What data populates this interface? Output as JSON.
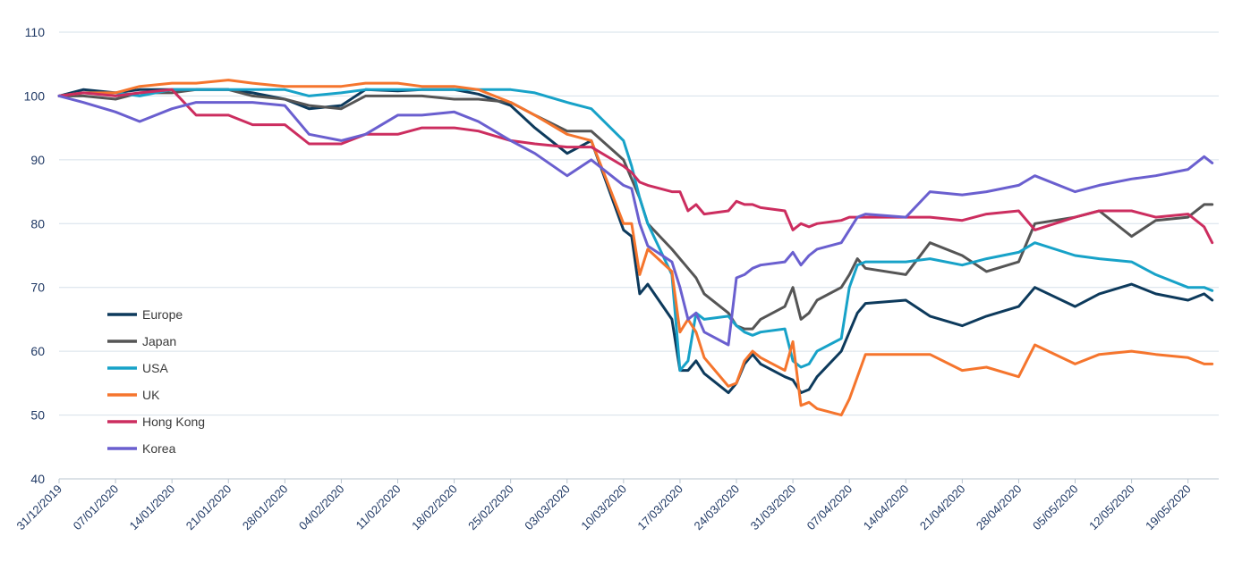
{
  "chart_data": {
    "type": "line",
    "title": "",
    "xlabel": "",
    "ylabel": "",
    "ylim": [
      40,
      110
    ],
    "yticks": [
      40,
      50,
      60,
      70,
      80,
      90,
      100,
      110
    ],
    "x_tick_labels": [
      "31/12/2019",
      "07/01/2020",
      "14/01/2020",
      "21/01/2020",
      "28/01/2020",
      "04/02/2020",
      "11/02/2020",
      "18/02/2020",
      "25/02/2020",
      "03/03/2020",
      "10/03/2020",
      "17/03/2020",
      "24/03/2020",
      "31/03/2020",
      "07/04/2020",
      "14/04/2020",
      "21/04/2020",
      "28/04/2020",
      "05/05/2020",
      "12/05/2020",
      "19/05/2020"
    ],
    "grid": "horizontal",
    "legend_position": "left-inside",
    "dates": [
      "31/12/2019",
      "03/01/2020",
      "07/01/2020",
      "10/01/2020",
      "14/01/2020",
      "17/01/2020",
      "21/01/2020",
      "24/01/2020",
      "28/01/2020",
      "31/01/2020",
      "04/02/2020",
      "07/02/2020",
      "11/02/2020",
      "14/02/2020",
      "18/02/2020",
      "21/02/2020",
      "25/02/2020",
      "28/02/2020",
      "03/03/2020",
      "06/03/2020",
      "10/03/2020",
      "11/03/2020",
      "12/03/2020",
      "13/03/2020",
      "16/03/2020",
      "17/03/2020",
      "18/03/2020",
      "19/03/2020",
      "20/03/2020",
      "23/03/2020",
      "24/03/2020",
      "25/03/2020",
      "26/03/2020",
      "27/03/2020",
      "30/03/2020",
      "31/03/2020",
      "01/04/2020",
      "02/04/2020",
      "03/04/2020",
      "06/04/2020",
      "07/04/2020",
      "08/04/2020",
      "09/04/2020",
      "14/04/2020",
      "17/04/2020",
      "21/04/2020",
      "24/04/2020",
      "28/04/2020",
      "30/04/2020",
      "05/05/2020",
      "08/05/2020",
      "12/05/2020",
      "15/05/2020",
      "19/05/2020",
      "21/05/2020",
      "22/05/2020"
    ],
    "series": [
      {
        "name": "Europe",
        "color": "#0d3a5c",
        "values": [
          100,
          101,
          100.5,
          101,
          101,
          101,
          101,
          100.5,
          99.5,
          98,
          98.5,
          101,
          100.8,
          101,
          101,
          100.3,
          98.5,
          95,
          91,
          93,
          79,
          78,
          69,
          70.5,
          65,
          57,
          57,
          58.5,
          56.5,
          53.5,
          55,
          58,
          59.5,
          58,
          56,
          55.5,
          53.5,
          54,
          56,
          60,
          63,
          66,
          67.5,
          68,
          65.5,
          64,
          65.5,
          67,
          70,
          67,
          69,
          70.5,
          69,
          68,
          69,
          68
        ]
      },
      {
        "name": "Japan",
        "color": "#555555",
        "values": [
          100,
          100,
          99.5,
          100.5,
          100.5,
          101,
          101,
          100,
          99.5,
          98.5,
          98,
          100,
          100,
          100,
          99.5,
          99.5,
          99,
          97,
          94.5,
          94.5,
          90,
          87,
          84,
          80,
          76,
          74.5,
          73,
          71.5,
          69,
          66,
          64,
          63.5,
          63.5,
          65,
          67,
          70,
          65,
          66,
          68,
          70,
          72,
          74.5,
          73,
          72,
          77,
          75,
          72.5,
          74,
          80,
          81,
          82,
          78,
          80.5,
          81,
          83,
          83
        ]
      },
      {
        "name": "USA",
        "color": "#17a2c8",
        "values": [
          100,
          100.5,
          100.5,
          100,
          101,
          101,
          101,
          101,
          101,
          100,
          100.5,
          101,
          101,
          101,
          101,
          101,
          101,
          100.5,
          99,
          98,
          93,
          89,
          84,
          80,
          72,
          57,
          58.5,
          66,
          65,
          65.5,
          64,
          63,
          62.5,
          63,
          63.5,
          58.5,
          57.5,
          58,
          60,
          62,
          70,
          73.5,
          74,
          74,
          74.5,
          73.5,
          74.5,
          75.5,
          77,
          75,
          74.5,
          74,
          72,
          70,
          70,
          69.5
        ]
      },
      {
        "name": "UK",
        "color": "#f5752d",
        "values": [
          100,
          100.5,
          100.5,
          101.5,
          102,
          102,
          102.5,
          102,
          101.5,
          101.5,
          101.5,
          102,
          102,
          101.5,
          101.5,
          101,
          99,
          97,
          94,
          93,
          80,
          80,
          72,
          76,
          72.5,
          63,
          65,
          63,
          59,
          54.5,
          55,
          58.5,
          60,
          59,
          57,
          61.5,
          51.5,
          52,
          51,
          50,
          52.5,
          56,
          59.5,
          59.5,
          59.5,
          57,
          57.5,
          56,
          61,
          58,
          59.5,
          60,
          59.5,
          59,
          58,
          58
        ]
      },
      {
        "name": "Hong Kong",
        "color": "#cc2d5f",
        "values": [
          100,
          100.5,
          100,
          100.5,
          101,
          97,
          97,
          95.5,
          95.5,
          92.5,
          92.5,
          94,
          94,
          95,
          95,
          94.5,
          93,
          92.5,
          92,
          92,
          89,
          88,
          86.5,
          86,
          85,
          85,
          82,
          83,
          81.5,
          82,
          83.5,
          83,
          83,
          82.5,
          82,
          79,
          80,
          79.5,
          80,
          80.5,
          81,
          81,
          81,
          81,
          81,
          80.5,
          81.5,
          82,
          79,
          81,
          82,
          82,
          81,
          81.5,
          79.5,
          77
        ]
      },
      {
        "name": "Korea",
        "color": "#6a5fcf",
        "values": [
          100,
          99,
          97.5,
          96,
          98,
          99,
          99,
          99,
          98.5,
          94,
          93,
          94,
          97,
          97,
          97.5,
          96,
          93,
          91,
          87.5,
          90,
          86,
          85.5,
          80,
          76.5,
          74,
          70,
          65,
          66,
          63,
          61,
          71.5,
          72,
          73,
          73.5,
          74,
          75.5,
          73.5,
          75,
          76,
          77,
          79,
          81,
          81.5,
          81,
          85,
          84.5,
          85,
          86,
          87.5,
          85,
          86,
          87,
          87.5,
          88.5,
          90.5,
          89.5
        ]
      }
    ]
  }
}
